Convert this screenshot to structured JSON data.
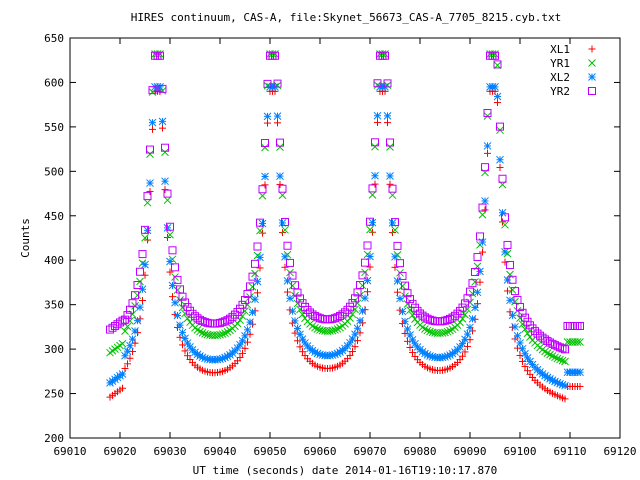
{
  "chart_data": {
    "type": "scatter",
    "title": "HIRES continuum, CAS-A, file:Skynet_56673_CAS-A_7705_8215.cyb.txt",
    "xlabel": "UT time (seconds) date 2014-01-16T19:10:17.870",
    "ylabel": "Counts",
    "xlim": [
      69010,
      69120
    ],
    "ylim": [
      200,
      650
    ],
    "xticks": [
      69010,
      69020,
      69030,
      69040,
      69050,
      69060,
      69070,
      69080,
      69090,
      69100,
      69110,
      69120
    ],
    "yticks": [
      200,
      250,
      300,
      350,
      400,
      450,
      500,
      550,
      600,
      650
    ],
    "x_start": 69018,
    "x_end": 69112,
    "x_step": 0.5,
    "gaps": [
      [
        69009,
        69010.5
      ]
    ],
    "grid": false,
    "legend_position": "top-right",
    "peak_centers": [
      69027.5,
      69050.5,
      69072.5,
      69094.7
    ],
    "series": [
      {
        "name": "XL1",
        "marker": "plus",
        "color": "#ff0000",
        "baseline": 226,
        "peak": 590,
        "edge_start": 246,
        "edge_end": 258
      },
      {
        "name": "YR1",
        "marker": "cross",
        "color": "#00c000",
        "baseline": 268,
        "peak": 632,
        "edge_start": 296,
        "edge_end": 308
      },
      {
        "name": "XL2",
        "marker": "star",
        "color": "#0080ff",
        "baseline": 241,
        "peak": 595,
        "edge_start": 262,
        "edge_end": 274
      },
      {
        "name": "YR2",
        "marker": "square",
        "color": "#c000ff",
        "baseline": 282,
        "peak": 630,
        "edge_start": 322,
        "edge_end": 326
      }
    ]
  }
}
